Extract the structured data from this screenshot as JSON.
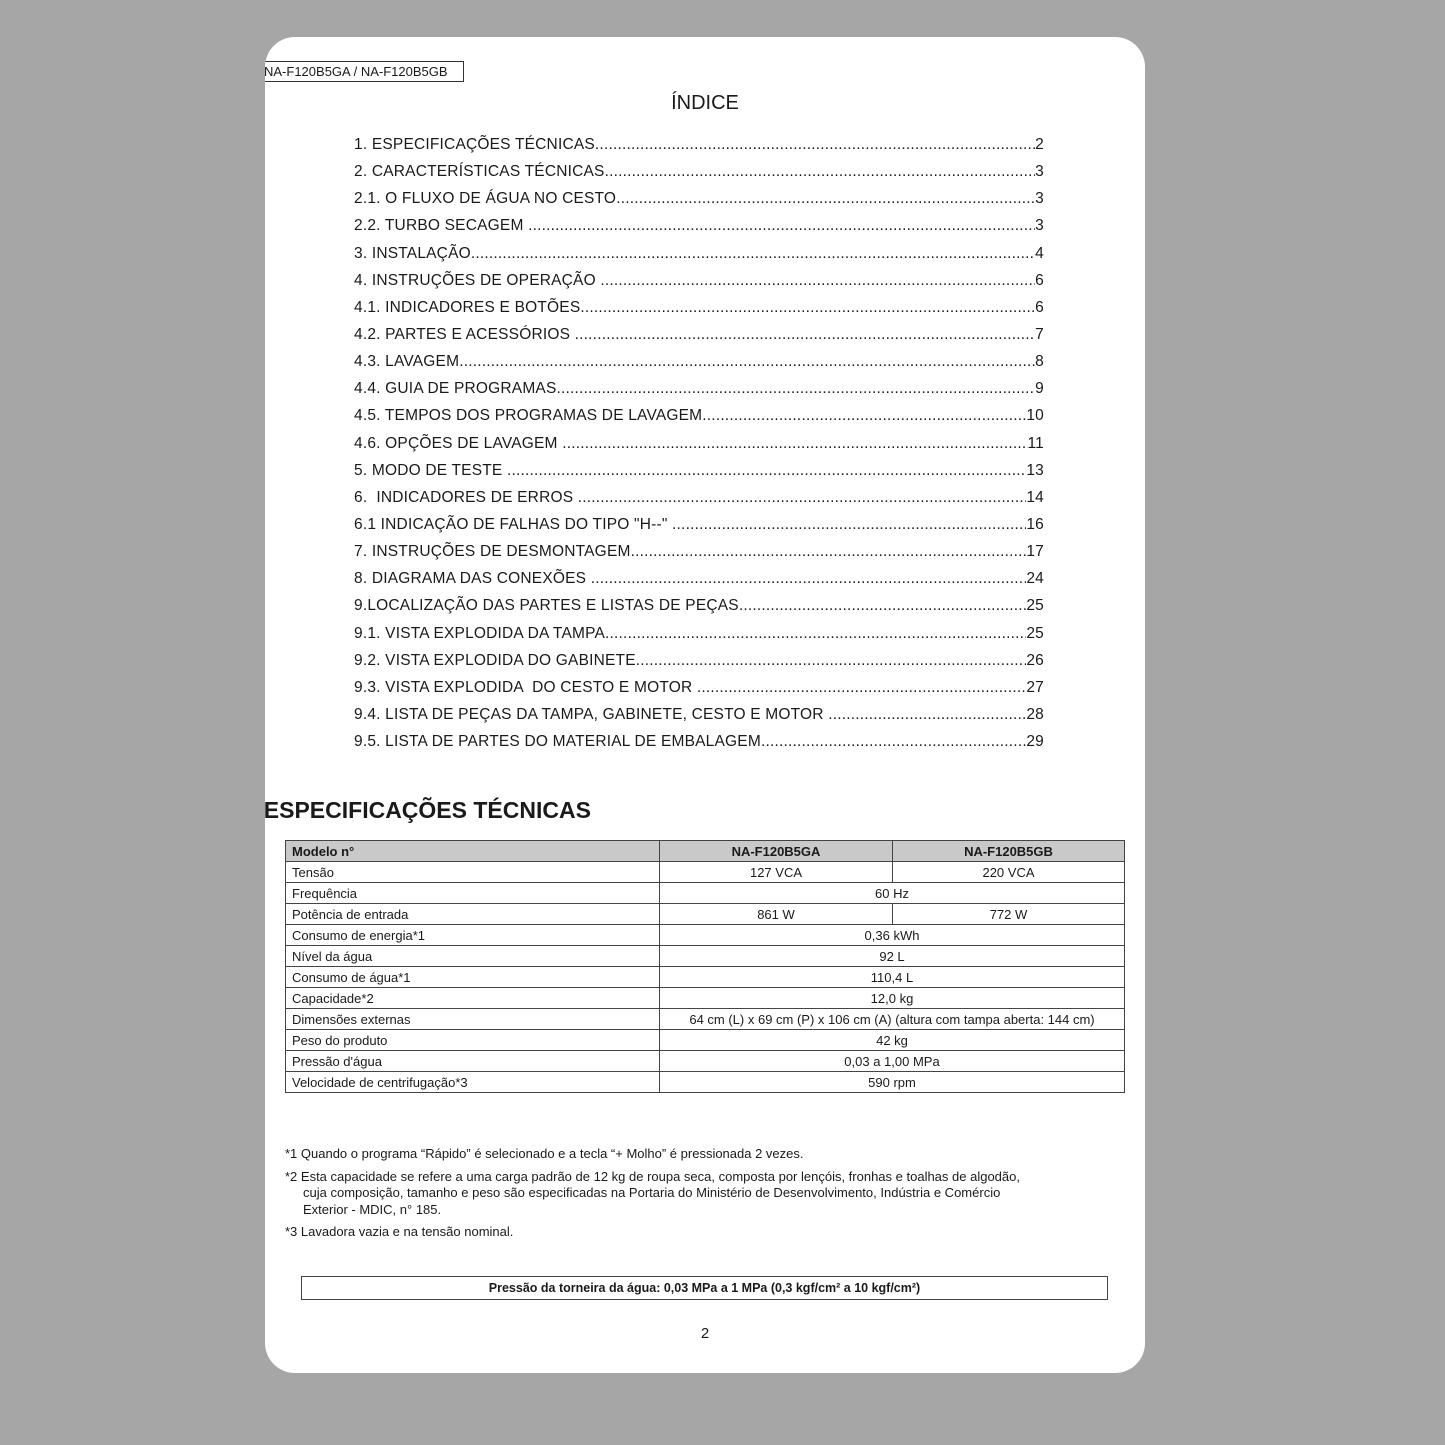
{
  "header": {
    "model_label": "NA-F120B5GA / NA-F120B5GB"
  },
  "toc": {
    "title": "ÍNDICE",
    "items": [
      {
        "label": "1. ESPECIFICAÇÕES TÉCNICAS",
        "page": "2"
      },
      {
        "label": "2. CARACTERÍSTICAS TÉCNICAS",
        "page": "3"
      },
      {
        "label": "2.1. O FLUXO DE ÁGUA NO CESTO",
        "page": "3"
      },
      {
        "label": "2.2. TURBO SECAGEM ",
        "page": "3"
      },
      {
        "label": "3. INSTALAÇÃO",
        "page": "4"
      },
      {
        "label": "4. INSTRUÇÕES DE OPERAÇÃO ",
        "page": "6"
      },
      {
        "label": "4.1. INDICADORES E BOTÕES",
        "page": "6"
      },
      {
        "label": "4.2. PARTES E ACESSÓRIOS ",
        "page": "7"
      },
      {
        "label": "4.3. LAVAGEM",
        "page": "8"
      },
      {
        "label": "4.4. GUIA DE PROGRAMAS",
        "page": "9"
      },
      {
        "label": "4.5. TEMPOS DOS PROGRAMAS DE LAVAGEM",
        "page": "10"
      },
      {
        "label": "4.6. OPÇÕES DE LAVAGEM ",
        "page": "11"
      },
      {
        "label": "5. MODO DE TESTE ",
        "page": "13"
      },
      {
        "label": "6.  INDICADORES DE ERROS ",
        "page": "14"
      },
      {
        "label": "6.1 INDICAÇÃO DE FALHAS DO TIPO \"H--\" ",
        "page": "16"
      },
      {
        "label": "7. INSTRUÇÕES DE DESMONTAGEM",
        "page": "17"
      },
      {
        "label": "8. DIAGRAMA DAS CONEXÕES ",
        "page": "24"
      },
      {
        "label": "9.LOCALIZAÇÃO DAS PARTES E LISTAS DE PEÇAS",
        "page": "25"
      },
      {
        "label": "9.1. VISTA EXPLODIDA DA TAMPA",
        "page": "25"
      },
      {
        "label": "9.2. VISTA EXPLODIDA DO GABINETE",
        "page": "26"
      },
      {
        "label": "9.3. VISTA EXPLODIDA  DO CESTO E MOTOR ",
        "page": "27"
      },
      {
        "label": "9.4. LISTA DE PEÇAS DA TAMPA, GABINETE, CESTO E MOTOR ",
        "page": "28"
      },
      {
        "label": "9.5. LISTA DE PARTES DO MATERIAL DE EMBALAGEM",
        "page": "29"
      }
    ]
  },
  "specs": {
    "title": ". ESPECIFICAÇÕES TÉCNICAS",
    "header": [
      "Modelo n°",
      "NA-F120B5GA",
      "NA-F120B5GB"
    ],
    "rows": {
      "tensao": [
        "Tensão",
        "127 VCA",
        "220 VCA"
      ],
      "frequencia": [
        "Frequência",
        "60 Hz"
      ],
      "potencia": [
        "Potência de entrada",
        "861 W",
        "772 W"
      ],
      "energia": [
        "Consumo de energia*1",
        "0,36 kWh"
      ],
      "nivel": [
        "Nível da água",
        "92 L"
      ],
      "agua": [
        "Consumo de água*1",
        "110,4 L"
      ],
      "capacidade": [
        "Capacidade*2",
        "12,0 kg"
      ],
      "dimensoes": [
        "Dimensões externas",
        "64 cm (L) x 69 cm (P) x 106 cm (A) (altura com tampa aberta: 144 cm)"
      ],
      "peso": [
        "Peso do produto",
        "42 kg"
      ],
      "pressao": [
        "Pressão d'água",
        "0,03 a 1,00 MPa"
      ],
      "velocidade": [
        "Velocidade de centrifugação*3",
        "590 rpm"
      ]
    }
  },
  "notes": {
    "n1": "*1 Quando o programa “Rápido” é selecionado e a tecla “+ Molho” é pressionada 2 vezes.",
    "n2a": "*2 Esta capacidade se refere a uma carga padrão de 12 kg de roupa seca, composta por lençóis, fronhas e toalhas de algodão,",
    "n2b": "cuja composição, tamanho e peso são especificadas na Portaria do Ministério de Desenvolvimento, Indústria e Comércio",
    "n2c": "Exterior - MDIC, n° 185.",
    "n3": "*3 Lavadora vazia e na tensão nominal."
  },
  "pressure_box": "Pressão da torneira da água: 0,03 MPa a 1 MPa (0,3 kgf/cm² a 10 kgf/cm²)",
  "page_number": "2"
}
